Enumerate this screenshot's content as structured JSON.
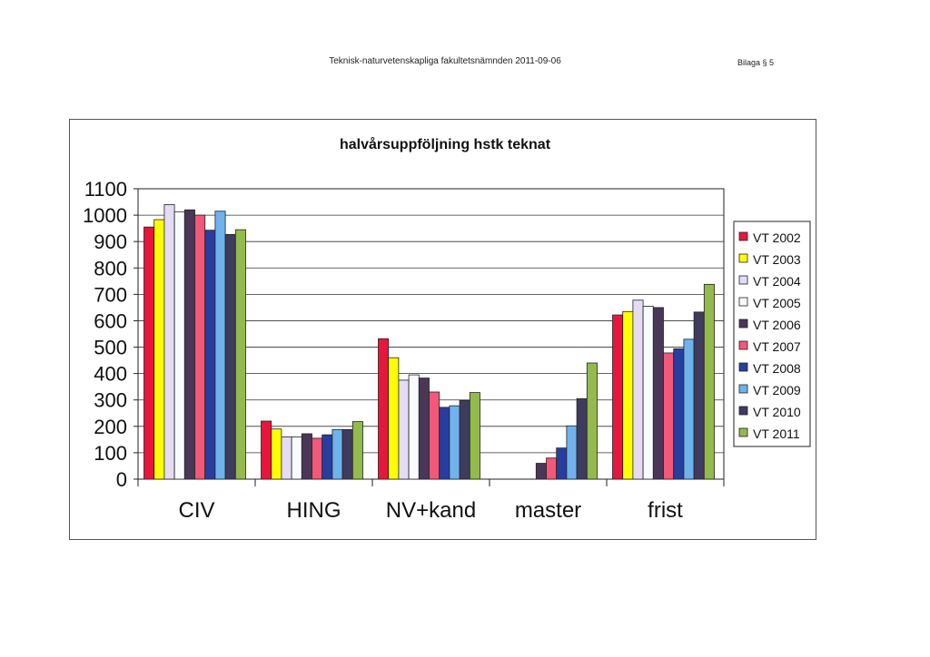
{
  "header": {
    "center": "Teknisk-naturvetenskapliga fakultetsnämnden 2011-09-06",
    "right": "Bilaga § 5"
  },
  "chart_data": {
    "type": "bar",
    "title": "halvårsuppföljning hstk teknat",
    "xlabel": "",
    "ylabel": "",
    "ylim": [
      0,
      1100
    ],
    "yticks": [
      0,
      100,
      200,
      300,
      400,
      500,
      600,
      700,
      800,
      900,
      1000,
      1100
    ],
    "grid": true,
    "legend_position": "right",
    "categories": [
      "CIV",
      "HING",
      "NV+kand",
      "master",
      "frist"
    ],
    "series": [
      {
        "name": "VT 2002",
        "color": "#e8163c",
        "values": [
          955,
          220,
          532,
          0,
          622
        ]
      },
      {
        "name": "VT 2003",
        "color": "#ffff00",
        "values": [
          983,
          190,
          460,
          0,
          635
        ]
      },
      {
        "name": "VT 2004",
        "color": "#e4dcf4",
        "values": [
          1040,
          160,
          375,
          0,
          678
        ]
      },
      {
        "name": "VT 2005",
        "color": "#f8fbfd",
        "values": [
          1013,
          160,
          395,
          0,
          655
        ]
      },
      {
        "name": "VT 2006",
        "color": "#4a3757",
        "values": [
          1020,
          172,
          383,
          60,
          650
        ]
      },
      {
        "name": "VT 2007",
        "color": "#f2587a",
        "values": [
          1000,
          155,
          330,
          80,
          478
        ]
      },
      {
        "name": "VT 2008",
        "color": "#283e9e",
        "values": [
          943,
          168,
          272,
          118,
          494
        ]
      },
      {
        "name": "VT 2009",
        "color": "#6fb2ec",
        "values": [
          1015,
          188,
          278,
          202,
          530
        ]
      },
      {
        "name": "VT 2010",
        "color": "#3f3b5e",
        "values": [
          927,
          188,
          298,
          305,
          633
        ]
      },
      {
        "name": "VT 2011",
        "color": "#93ba4c",
        "values": [
          945,
          218,
          328,
          440,
          738
        ]
      }
    ]
  }
}
